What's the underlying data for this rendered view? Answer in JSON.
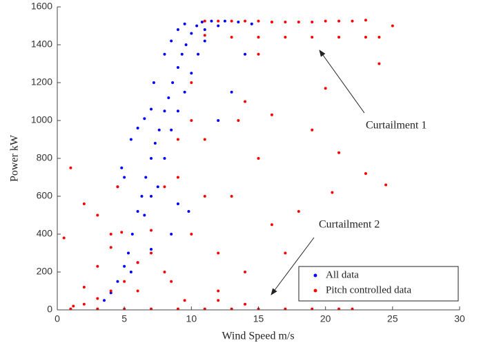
{
  "chart_data": {
    "type": "scatter",
    "x_label": "Wind Speed m/s",
    "y_label": "Power kW",
    "xlim": [
      0,
      30
    ],
    "ylim": [
      0,
      1600
    ],
    "xticks": [
      0,
      5,
      10,
      15,
      20,
      25,
      30
    ],
    "yticks": [
      0,
      200,
      400,
      600,
      800,
      1000,
      1200,
      1400,
      1600
    ],
    "grid": false,
    "legend": "lower right",
    "annotations": [
      "Curtailment 1",
      "Curtailment 2"
    ],
    "series": [
      {
        "name": "All data",
        "color": "#0000ff",
        "x": [
          3.5,
          4,
          4.5,
          5,
          5.3,
          5.6,
          6,
          6.3,
          6.6,
          7,
          7.3,
          7.6,
          8,
          8.3,
          8.6,
          9,
          9.3,
          9.6,
          10,
          10.4,
          10.8,
          11.5,
          12.5,
          13.5,
          14.5,
          7.5,
          8,
          8.5,
          9,
          9.5,
          10,
          10.5,
          11,
          6.5,
          7,
          5.5,
          6,
          6.5,
          7,
          4.8,
          5,
          4.5,
          7.2,
          8,
          8.5,
          9,
          9.5,
          12,
          13,
          14,
          9.8,
          9,
          7,
          6,
          5.5,
          8.5,
          11,
          12
        ],
        "y": [
          50,
          90,
          150,
          230,
          300,
          400,
          520,
          600,
          700,
          800,
          880,
          950,
          1050,
          1120,
          1200,
          1280,
          1350,
          1400,
          1460,
          1500,
          1520,
          1525,
          1525,
          1520,
          1510,
          650,
          800,
          950,
          1050,
          1150,
          1250,
          1350,
          1420,
          500,
          600,
          900,
          960,
          1010,
          1060,
          750,
          700,
          650,
          1200,
          1350,
          1420,
          1480,
          1510,
          1000,
          1150,
          1350,
          520,
          560,
          320,
          250,
          200,
          400,
          1480,
          1500
        ]
      },
      {
        "name": "Pitch controlled data",
        "color": "#ff0000",
        "x": [
          1,
          3,
          5,
          7,
          9,
          11,
          13,
          15,
          17,
          19,
          21,
          22,
          1.2,
          2,
          3,
          4,
          4.8,
          2,
          3,
          4,
          5,
          6,
          7,
          8,
          9,
          10,
          11,
          11,
          12,
          13,
          14,
          15,
          16,
          17,
          18,
          19,
          20,
          21,
          22,
          23,
          13,
          15,
          17,
          19,
          21,
          23,
          24,
          0.5,
          1,
          2,
          3,
          4,
          4.5,
          6,
          7,
          8,
          9,
          10,
          11,
          12,
          13,
          14,
          15,
          16,
          18,
          19,
          20,
          20.5,
          21,
          24,
          24.5,
          23,
          25,
          17,
          12,
          10,
          8.5,
          13.5,
          14,
          15,
          16,
          11,
          9.5,
          12,
          14
        ],
        "y": [
          5,
          5,
          5,
          5,
          5,
          5,
          5,
          5,
          5,
          5,
          5,
          5,
          20,
          120,
          230,
          330,
          410,
          30,
          60,
          100,
          150,
          250,
          420,
          650,
          900,
          1200,
          1450,
          1525,
          1525,
          1525,
          1525,
          1525,
          1520,
          1520,
          1520,
          1520,
          1525,
          1525,
          1525,
          1530,
          1440,
          1440,
          1440,
          1440,
          1440,
          1440,
          1440,
          380,
          750,
          560,
          500,
          400,
          650,
          100,
          300,
          200,
          700,
          400,
          900,
          300,
          600,
          200,
          800,
          1030,
          520,
          950,
          1170,
          620,
          830,
          1300,
          660,
          720,
          1500,
          300,
          100,
          1000,
          150,
          1000,
          1100,
          1350,
          450,
          600,
          50,
          50,
          30
        ]
      }
    ]
  }
}
